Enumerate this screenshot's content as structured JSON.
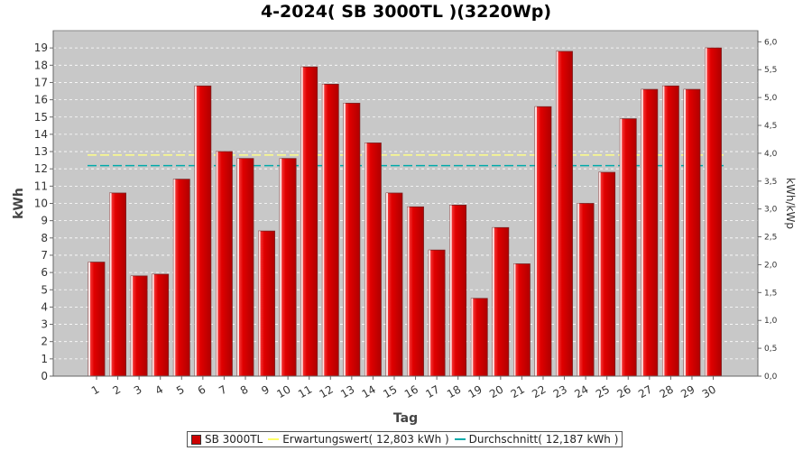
{
  "title": "4-2024( SB 3000TL )(3220Wp)",
  "legend": {
    "series_label": "SB 3000TL",
    "expected_label": "Erwartungswert( 12,803 kWh )",
    "average_label": "Durchschnitt( 12,187 kWh )"
  },
  "colors": {
    "bar": "#e00000",
    "plot_background": "#c8c8c8",
    "expected_line": "#ffff88",
    "average_line": "#00aaaa"
  },
  "chart_data": {
    "type": "bar",
    "title": "4-2024( SB 3000TL )(3220Wp)",
    "xlabel": "Tag",
    "ylabel": "kWh",
    "y2label": "kWh/kWp",
    "categories": [
      "1",
      "2",
      "3",
      "4",
      "5",
      "6",
      "7",
      "8",
      "9",
      "10",
      "11",
      "12",
      "13",
      "14",
      "15",
      "16",
      "17",
      "18",
      "19",
      "20",
      "21",
      "22",
      "23",
      "24",
      "25",
      "26",
      "27",
      "28",
      "29",
      "30"
    ],
    "series": [
      {
        "name": "SB 3000TL",
        "values": [
          6.6,
          10.6,
          5.8,
          5.9,
          11.4,
          16.8,
          13.0,
          12.6,
          8.4,
          12.6,
          17.9,
          16.9,
          15.8,
          13.5,
          10.6,
          9.8,
          7.3,
          9.9,
          4.5,
          8.6,
          6.5,
          15.6,
          18.8,
          10.0,
          11.8,
          14.9,
          16.6,
          16.8,
          16.6,
          19.0
        ]
      }
    ],
    "expected_value": 12.803,
    "average_value": 12.187,
    "ylim": [
      0,
      20
    ],
    "yticks": [
      "0",
      "1",
      "2",
      "3",
      "4",
      "5",
      "6",
      "7",
      "8",
      "9",
      "10",
      "11",
      "12",
      "13",
      "14",
      "15",
      "16",
      "17",
      "18",
      "19"
    ],
    "y2lim": [
      0,
      6.2
    ],
    "y2ticks": [
      "0,0",
      "0,5",
      "1,0",
      "1,5",
      "2,0",
      "2,5",
      "3,0",
      "3,5",
      "4,0",
      "4,5",
      "5,0",
      "5,5",
      "6,0"
    ],
    "grid": true,
    "legend_position": "bottom"
  }
}
